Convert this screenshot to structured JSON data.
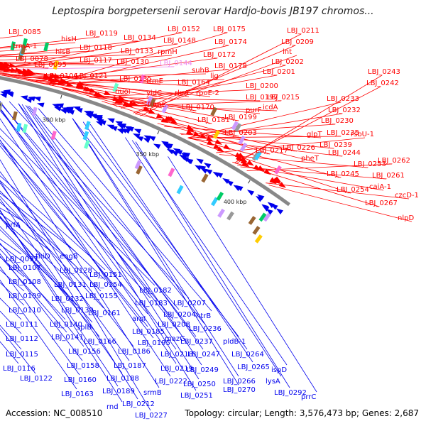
{
  "title": "Leptospira borgpetersenii serovar Hardjo-bovis JB197 chromos...",
  "footer": {
    "accession": "Accession: NC_008510",
    "summary": "Topology: circular; Length: 3,576,473 bp; Genes: 2,687"
  },
  "colors": {
    "forward": "#ff0000",
    "reverse": "#0000ee",
    "highlight": "#ee88ee",
    "backbone": "#888888"
  },
  "kbp_ticks": [
    "150 kbp",
    "200 kbp",
    "250 kbp",
    "300 kbp",
    "350 kbp",
    "400 kbp"
  ],
  "top_labels": [
    "LBJ_0085",
    "trmA-1",
    "LBJ_0078",
    "hisH",
    "hisB",
    "LBJ_0095",
    "LBJ_0106",
    "LBJ_0119",
    "LBJ_0118",
    "LBJ_0117",
    "LBJ_0121",
    "LBJ_0134",
    "LBJ_0133",
    "LBJ_0130",
    "LBJ_0135",
    "nuoI",
    "LBJ_0148",
    "rpmH",
    "LBJ_0144",
    "trmE",
    "yidC",
    "fumC",
    "LBJ_0152",
    "LBJ_0175",
    "LBJ_0174",
    "LBJ_0172",
    "suhB",
    "lig",
    "LBJ_0178",
    "LBJ_0164",
    "rluA",
    "rpoE-2",
    "LBJ_0170",
    "LBJ_0181",
    "LBJ_0211",
    "LBJ_0209",
    "lnt",
    "LBJ_0202",
    "LBJ_0201",
    "LBJ_0200",
    "LBJ_0197",
    "LBJ_0215",
    "purF",
    "icdA",
    "LBJ_0199",
    "LBJ_0203",
    "LBJ_0217",
    "LBJ_0243",
    "LBJ_0242",
    "LBJ_0233",
    "LBJ_0232",
    "LBJ_0230",
    "glpT",
    "LBJ_0235",
    "rsbU-1",
    "LBJ_0226",
    "LBJ_0239",
    "pheT",
    "LBJ_0244",
    "LBJ_0253",
    "LBJ_0262",
    "LBJ_0245",
    "LBJ_0261",
    "caiA-1",
    "LBJ_0254",
    "czcD-1",
    "LBJ_0267",
    "nlpD"
  ],
  "bottom_labels": [
    "prfA",
    "LBJ_0097",
    "thiD",
    "LBJ_0107",
    "LBJ_0108",
    "LBJ_0109",
    "LBJ_0110",
    "LBJ_0111",
    "LBJ_0112",
    "LBJ_0115",
    "LBJ_0116",
    "LBJ_0122",
    "engB",
    "LBJ_0128",
    "LBJ_0131",
    "LBJ_0132",
    "LBJ_0139",
    "LBJ_0140",
    "LBJ_0141",
    "LBJ_0151",
    "LBJ_0154",
    "LBJ_0155",
    "LBJ_0161",
    "splB",
    "LBJ_0166",
    "LBJ_0156",
    "LBJ_0158",
    "LBJ_0160",
    "LBJ_0163",
    "LBJ_0182",
    "LBJ_0183",
    "argI",
    "LBJ_0185",
    "LBJ_0195",
    "LBJ_0186",
    "LBJ_0187",
    "LBJ_0188",
    "LBJ_0189",
    "rnd",
    "LBJ_0207",
    "LBJ_0204",
    "LBJ_0208",
    "mazG",
    "LBJ_0218",
    "LBJ_0219",
    "LBJ_0222",
    "srmB",
    "LBJ_0212",
    "LBJ_0227",
    "htrB",
    "LBJ_0236",
    "LBJ_0237",
    "pldB-1",
    "LBJ_0247",
    "LBJ_0264",
    "LBJ_0249",
    "LBJ_0265",
    "LBJ_0250",
    "LBJ_0266",
    "LBJ_0251",
    "LBJ_0270",
    "ispD",
    "lysA",
    "LBJ_0292",
    "prrC"
  ]
}
